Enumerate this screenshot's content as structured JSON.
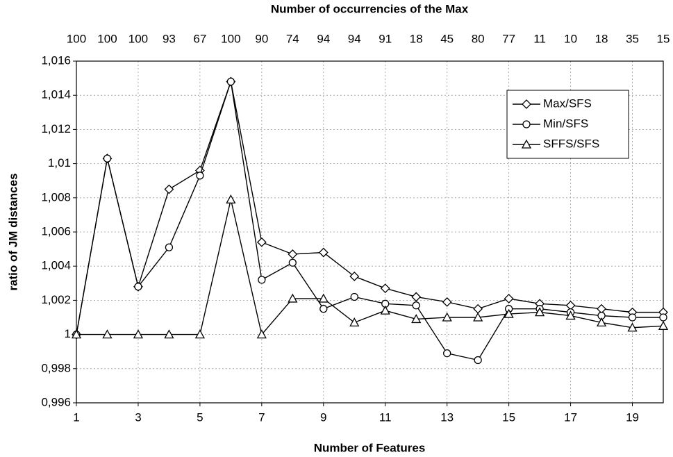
{
  "chart_data": {
    "type": "line",
    "x2_title": "Number of occurrencies of the Max",
    "x2_labels": [
      100,
      100,
      100,
      93,
      67,
      100,
      90,
      74,
      94,
      94,
      91,
      18,
      45,
      80,
      77,
      11,
      10,
      18,
      35,
      15
    ],
    "xlabel": "Number of Features",
    "ylabel": "ratio of JM distances",
    "x": [
      1,
      2,
      3,
      4,
      5,
      6,
      7,
      8,
      9,
      10,
      11,
      12,
      13,
      14,
      15,
      16,
      17,
      18,
      19,
      20
    ],
    "xlim": [
      1,
      20
    ],
    "xticks": [
      1,
      3,
      5,
      7,
      9,
      11,
      13,
      15,
      17,
      19
    ],
    "ylim": [
      0.996,
      1.016
    ],
    "yticks": [
      {
        "value": 0.996,
        "label": "0,996"
      },
      {
        "value": 0.998,
        "label": "0,998"
      },
      1,
      {
        "value": 1.002,
        "label": "1,002"
      },
      {
        "value": 1.004,
        "label": "1,004"
      },
      {
        "value": 1.006,
        "label": "1,006"
      },
      {
        "value": 1.008,
        "label": "1,008"
      },
      {
        "value": 1.01,
        "label": "1,01"
      },
      {
        "value": 1.012,
        "label": "1,012"
      },
      {
        "value": 1.014,
        "label": "1,014"
      },
      {
        "value": 1.016,
        "label": "1,016"
      }
    ],
    "grid": true,
    "legend": "upper right",
    "series": [
      {
        "name": "Max/SFS",
        "color": "#000000",
        "marker": "diamond",
        "values": [
          1.0,
          1.0103,
          1.0028,
          1.0085,
          1.0096,
          1.0148,
          1.0054,
          1.0047,
          1.0048,
          1.0034,
          1.0027,
          1.0022,
          1.0019,
          1.0015,
          1.0021,
          1.0018,
          1.0017,
          1.0015,
          1.0013,
          1.0013
        ]
      },
      {
        "name": "Min/SFS",
        "color": "#000000",
        "marker": "circle",
        "values": [
          1.0,
          1.0103,
          1.0028,
          1.0051,
          1.0093,
          1.0148,
          1.0032,
          1.0042,
          1.0015,
          1.0022,
          1.0018,
          1.0017,
          0.9989,
          0.9985,
          1.0015,
          1.0015,
          1.0013,
          1.0011,
          1.001,
          1.001
        ]
      },
      {
        "name": "SFFS/SFS",
        "color": "#000000",
        "marker": "triangle",
        "values": [
          1.0,
          1.0,
          1.0,
          1.0,
          1.0,
          1.0079,
          1.0,
          1.0021,
          1.0021,
          1.0007,
          1.0014,
          1.0009,
          1.001,
          1.001,
          1.0012,
          1.0013,
          1.0011,
          1.0007,
          1.0004,
          1.0005
        ]
      }
    ]
  }
}
